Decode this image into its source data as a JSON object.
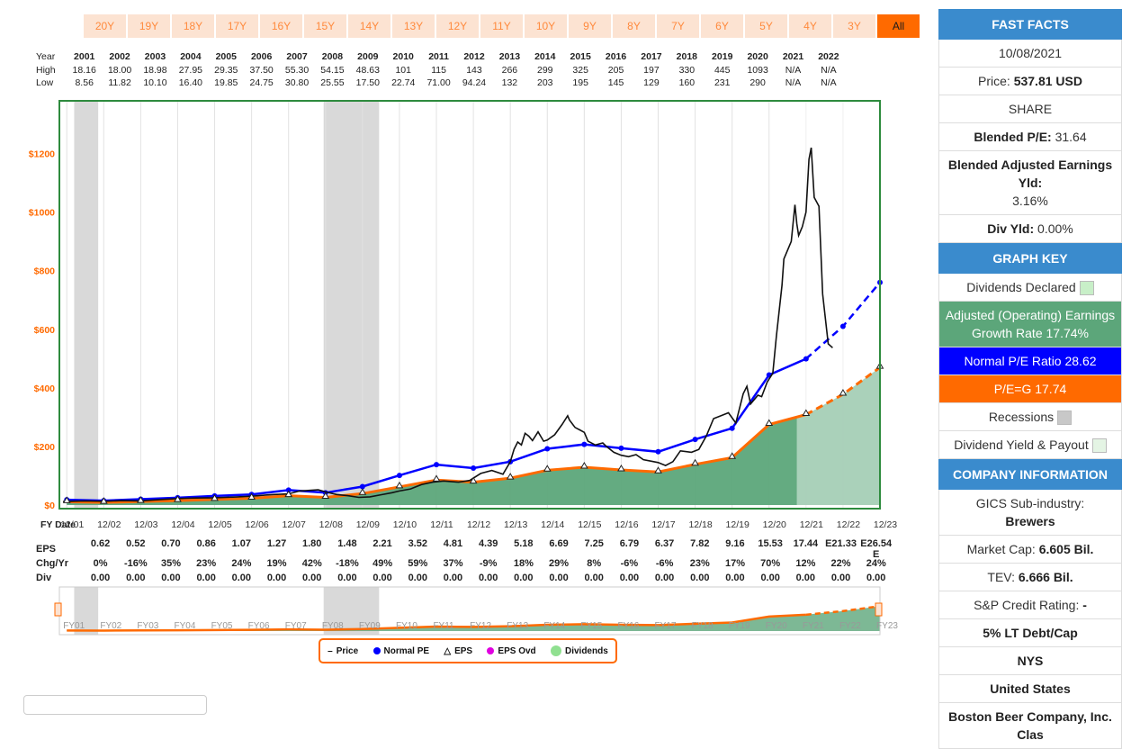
{
  "range_buttons": [
    "20Y",
    "19Y",
    "18Y",
    "17Y",
    "16Y",
    "15Y",
    "14Y",
    "13Y",
    "12Y",
    "11Y",
    "10Y",
    "9Y",
    "8Y",
    "7Y",
    "6Y",
    "5Y",
    "4Y",
    "3Y",
    "All"
  ],
  "active_range": "All",
  "hl_table": {
    "labels": {
      "year": "Year",
      "high": "High",
      "low": "Low"
    },
    "years": [
      "2001",
      "2002",
      "2003",
      "2004",
      "2005",
      "2006",
      "2007",
      "2008",
      "2009",
      "2010",
      "2011",
      "2012",
      "2013",
      "2014",
      "2015",
      "2016",
      "2017",
      "2018",
      "2019",
      "2020",
      "2021",
      "2022"
    ],
    "high": [
      "18.16",
      "18.00",
      "18.98",
      "27.95",
      "29.35",
      "37.50",
      "55.30",
      "54.15",
      "48.63",
      "101",
      "115",
      "143",
      "266",
      "299",
      "325",
      "205",
      "197",
      "330",
      "445",
      "1093",
      "N/A",
      "N/A"
    ],
    "low": [
      "8.56",
      "11.82",
      "10.10",
      "16.40",
      "19.85",
      "24.75",
      "30.80",
      "25.55",
      "17.50",
      "22.74",
      "71.00",
      "94.24",
      "132",
      "203",
      "195",
      "145",
      "129",
      "160",
      "231",
      "290",
      "N/A",
      "N/A"
    ]
  },
  "fy_date_label": "FY Date",
  "eps_table": {
    "labels": {
      "eps": "EPS",
      "chg": "Chg/Yr",
      "div": "Div"
    },
    "eps": [
      "0.62",
      "0.52",
      "0.70",
      "0.86",
      "1.07",
      "1.27",
      "1.80",
      "1.48",
      "2.21",
      "3.52",
      "4.81",
      "4.39",
      "5.18",
      "6.69",
      "7.25",
      "6.79",
      "6.37",
      "7.82",
      "9.16",
      "15.53",
      "17.44",
      "E21.33",
      "E26.54 E"
    ],
    "chg": [
      "0%",
      "-16%",
      "35%",
      "23%",
      "24%",
      "19%",
      "42%",
      "-18%",
      "49%",
      "59%",
      "37%",
      "-9%",
      "18%",
      "29%",
      "8%",
      "-6%",
      "-6%",
      "23%",
      "17%",
      "70%",
      "12%",
      "22%",
      "24%"
    ],
    "div": [
      "0.00",
      "0.00",
      "0.00",
      "0.00",
      "0.00",
      "0.00",
      "0.00",
      "0.00",
      "0.00",
      "0.00",
      "0.00",
      "0.00",
      "0.00",
      "0.00",
      "0.00",
      "0.00",
      "0.00",
      "0.00",
      "0.00",
      "0.00",
      "0.00",
      "0.00",
      "0.00"
    ]
  },
  "legend": {
    "price": "Price",
    "normal_pe": "Normal PE",
    "eps": "EPS",
    "eps_ovd": "EPS Ovd",
    "dividends": "Dividends"
  },
  "colors": {
    "orange": "#ff6a00",
    "blue": "#0000ff",
    "green_fill": "#5ca67a",
    "green_border": "#2e8b3e",
    "recession": "#d9d9d9",
    "eps_ovd": "#e000e0",
    "dividends": "#90e090",
    "facts_head": "#3a8bcd"
  },
  "chart_data": {
    "type": "line",
    "ylim": [
      0,
      1300
    ],
    "yticks": [
      0,
      200,
      400,
      600,
      800,
      1000,
      1200
    ],
    "ytick_labels": [
      "$0",
      "$200",
      "$400",
      "$600",
      "$800",
      "$1000",
      "$1200"
    ],
    "x_labels": [
      "12/01",
      "12/02",
      "12/03",
      "12/04",
      "12/05",
      "12/06",
      "12/07",
      "12/08",
      "12/09",
      "12/10",
      "12/11",
      "12/12",
      "12/13",
      "12/14",
      "12/15",
      "12/16",
      "12/17",
      "12/18",
      "12/19",
      "12/20",
      "12/21",
      "12/22",
      "12/23"
    ],
    "recessions": [
      [
        2001.2,
        2001.85
      ],
      [
        2007.95,
        2009.45
      ]
    ],
    "estimate_start": 2020.75,
    "series": [
      {
        "name": "Normal PE",
        "points": [
          [
            2001,
            18
          ],
          [
            2002,
            15
          ],
          [
            2003,
            20
          ],
          [
            2004,
            25
          ],
          [
            2005,
            31
          ],
          [
            2006,
            36
          ],
          [
            2007,
            51
          ],
          [
            2008,
            42
          ],
          [
            2009,
            63
          ],
          [
            2010,
            101
          ],
          [
            2011,
            138
          ],
          [
            2012,
            126
          ],
          [
            2013,
            148
          ],
          [
            2014,
            192
          ],
          [
            2015,
            207
          ],
          [
            2016,
            194
          ],
          [
            2017,
            182
          ],
          [
            2018,
            224
          ],
          [
            2019,
            262
          ],
          [
            2020,
            444
          ],
          [
            2021,
            499
          ]
        ],
        "estimate": [
          [
            2021,
            499
          ],
          [
            2022,
            610
          ],
          [
            2023,
            760
          ]
        ]
      },
      {
        "name": "P/E=G",
        "points": [
          [
            2001,
            11
          ],
          [
            2002,
            9
          ],
          [
            2003,
            12
          ],
          [
            2004,
            15
          ],
          [
            2005,
            19
          ],
          [
            2006,
            23
          ],
          [
            2007,
            32
          ],
          [
            2008,
            26
          ],
          [
            2009,
            39
          ],
          [
            2010,
            62
          ],
          [
            2011,
            85
          ],
          [
            2012,
            78
          ],
          [
            2013,
            92
          ],
          [
            2014,
            119
          ],
          [
            2015,
            129
          ],
          [
            2016,
            120
          ],
          [
            2017,
            113
          ],
          [
            2018,
            139
          ],
          [
            2019,
            162
          ],
          [
            2020,
            275
          ],
          [
            2021,
            309
          ]
        ],
        "estimate": [
          [
            2021,
            309
          ],
          [
            2022,
            378
          ],
          [
            2023,
            470
          ]
        ]
      },
      {
        "name": "Price",
        "points": [
          [
            2000.9,
            12
          ],
          [
            2001.5,
            14
          ],
          [
            2002,
            13
          ],
          [
            2002.5,
            15
          ],
          [
            2003,
            14
          ],
          [
            2003.5,
            18
          ],
          [
            2004,
            22
          ],
          [
            2004.5,
            24
          ],
          [
            2005,
            25
          ],
          [
            2005.5,
            27
          ],
          [
            2006,
            30
          ],
          [
            2006.5,
            35
          ],
          [
            2007,
            38
          ],
          [
            2007.3,
            48
          ],
          [
            2007.8,
            52
          ],
          [
            2008,
            45
          ],
          [
            2008.3,
            36
          ],
          [
            2008.6,
            32
          ],
          [
            2008.9,
            26
          ],
          [
            2009.2,
            28
          ],
          [
            2009.5,
            35
          ],
          [
            2009.8,
            42
          ],
          [
            2010,
            48
          ],
          [
            2010.3,
            55
          ],
          [
            2010.6,
            70
          ],
          [
            2010.9,
            78
          ],
          [
            2011.2,
            82
          ],
          [
            2011.6,
            78
          ],
          [
            2011.9,
            84
          ],
          [
            2012.2,
            108
          ],
          [
            2012.5,
            118
          ],
          [
            2012.8,
            105
          ],
          [
            2013,
            148
          ],
          [
            2013.1,
            190
          ],
          [
            2013.2,
            215
          ],
          [
            2013.3,
            205
          ],
          [
            2013.4,
            245
          ],
          [
            2013.5,
            235
          ],
          [
            2013.6,
            220
          ],
          [
            2013.75,
            250
          ],
          [
            2013.9,
            218
          ],
          [
            2014,
            222
          ],
          [
            2014.2,
            240
          ],
          [
            2014.4,
            275
          ],
          [
            2014.55,
            305
          ],
          [
            2014.6,
            290
          ],
          [
            2014.75,
            265
          ],
          [
            2014.9,
            255
          ],
          [
            2015,
            248
          ],
          [
            2015.1,
            218
          ],
          [
            2015.3,
            205
          ],
          [
            2015.5,
            212
          ],
          [
            2015.6,
            200
          ],
          [
            2015.8,
            180
          ],
          [
            2016,
            170
          ],
          [
            2016.2,
            165
          ],
          [
            2016.4,
            172
          ],
          [
            2016.6,
            155
          ],
          [
            2016.8,
            150
          ],
          [
            2017,
            145
          ],
          [
            2017.2,
            135
          ],
          [
            2017.4,
            148
          ],
          [
            2017.6,
            185
          ],
          [
            2017.9,
            180
          ],
          [
            2018.1,
            190
          ],
          [
            2018.3,
            235
          ],
          [
            2018.5,
            295
          ],
          [
            2018.7,
            305
          ],
          [
            2018.9,
            315
          ],
          [
            2019.1,
            280
          ],
          [
            2019.3,
            380
          ],
          [
            2019.4,
            405
          ],
          [
            2019.5,
            345
          ],
          [
            2019.7,
            375
          ],
          [
            2019.8,
            370
          ],
          [
            2019.95,
            420
          ],
          [
            2020.1,
            450
          ],
          [
            2020.2,
            580
          ],
          [
            2020.35,
            750
          ],
          [
            2020.4,
            840
          ],
          [
            2020.5,
            870
          ],
          [
            2020.6,
            900
          ],
          [
            2020.7,
            1025
          ],
          [
            2020.75,
            960
          ],
          [
            2020.8,
            920
          ],
          [
            2020.9,
            950
          ],
          [
            2021.0,
            1000
          ],
          [
            2021.08,
            1180
          ],
          [
            2021.14,
            1220
          ],
          [
            2021.22,
            1050
          ],
          [
            2021.35,
            1020
          ],
          [
            2021.45,
            720
          ],
          [
            2021.6,
            550
          ],
          [
            2021.72,
            537
          ]
        ]
      },
      {
        "name": "EPS",
        "points": [
          [
            2001,
            11
          ],
          [
            2002,
            9
          ],
          [
            2003,
            12
          ],
          [
            2004,
            15
          ],
          [
            2005,
            19
          ],
          [
            2006,
            23
          ],
          [
            2007,
            32
          ],
          [
            2008,
            26
          ],
          [
            2009,
            39
          ],
          [
            2010,
            62
          ],
          [
            2011,
            85
          ],
          [
            2012,
            78
          ],
          [
            2013,
            92
          ],
          [
            2014,
            119
          ],
          [
            2015,
            129
          ],
          [
            2016,
            120
          ],
          [
            2017,
            113
          ],
          [
            2018,
            139
          ],
          [
            2019,
            162
          ],
          [
            2020,
            275
          ],
          [
            2021,
            309
          ],
          [
            2022,
            378
          ],
          [
            2023,
            470
          ]
        ]
      }
    ]
  },
  "mini_labels": [
    "FY01",
    "FY02",
    "FY03",
    "FY04",
    "FY05",
    "FY06",
    "FY07",
    "FY08",
    "FY09",
    "FY10",
    "FY11",
    "FY12",
    "FY13",
    "FY14",
    "FY15",
    "FY16",
    "FY17",
    "FY18",
    "FY19",
    "FY20",
    "FY21",
    "FY22",
    "FY23"
  ],
  "fast_facts": {
    "title": "FAST FACTS",
    "date": "10/08/2021",
    "price_label": "Price:",
    "price_value": "537.81 USD",
    "share": "SHARE",
    "blended_pe_label": "Blended P/E:",
    "blended_pe_value": "31.64",
    "blended_yld_label": "Blended Adjusted Earnings Yld:",
    "blended_yld_value": "3.16%",
    "div_yld_label": "Div Yld:",
    "div_yld_value": "0.00%",
    "graph_key_title": "GRAPH KEY",
    "key_dividends": "Dividends Declared",
    "key_growth": "Adjusted (Operating) Earnings Growth Rate 17.74%",
    "key_normal_pe": "Normal P/E Ratio 28.62",
    "key_peg": "P/E=G 17.74",
    "key_recessions": "Recessions",
    "key_div_yield": "Dividend Yield & Payout",
    "company_title": "COMPANY INFORMATION",
    "gics_label": "GICS Sub-industry:",
    "gics_value": "Brewers",
    "mcap_label": "Market Cap:",
    "mcap_value": "6.605 Bil.",
    "tev_label": "TEV:",
    "tev_value": "6.666 Bil.",
    "credit_label": "S&P Credit Rating:",
    "credit_value": "-",
    "debt_cap": "5% LT Debt/Cap",
    "exchange": "NYS",
    "country": "United States",
    "company_name": "Boston Beer Company, Inc. Clas"
  }
}
